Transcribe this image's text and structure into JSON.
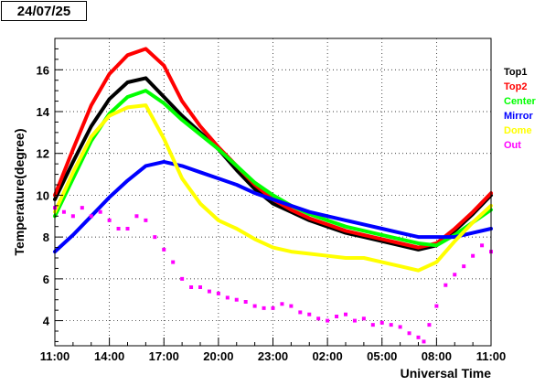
{
  "date_label": "24/07/25",
  "chart_data": {
    "type": "line",
    "ylabel": "Temperature(degree)",
    "xlabel": "Universal Time",
    "x_unit": "hours after 24/07/25 11:00 UT",
    "xlim": [
      0,
      24
    ],
    "ylim": [
      2.8,
      17.5
    ],
    "x_ticks": [
      {
        "x": 0,
        "label": "11:00"
      },
      {
        "x": 3,
        "label": "14:00"
      },
      {
        "x": 6,
        "label": "17:00"
      },
      {
        "x": 9,
        "label": "20:00"
      },
      {
        "x": 12,
        "label": "23:00"
      },
      {
        "x": 15,
        "label": "02:00"
      },
      {
        "x": 18,
        "label": "05:00"
      },
      {
        "x": 21,
        "label": "08:00"
      },
      {
        "x": 24,
        "label": "11:00"
      }
    ],
    "y_ticks": [
      4,
      6,
      8,
      10,
      12,
      14,
      16
    ],
    "grid": true,
    "legend_position": "right",
    "series": [
      {
        "name": "Top1",
        "color": "#000000",
        "style": "line",
        "points": [
          [
            0,
            9.8
          ],
          [
            1,
            11.6
          ],
          [
            2,
            13.3
          ],
          [
            3,
            14.6
          ],
          [
            4,
            15.4
          ],
          [
            5,
            15.6
          ],
          [
            6,
            14.7
          ],
          [
            7,
            13.8
          ],
          [
            8,
            13.0
          ],
          [
            9,
            12.2
          ],
          [
            10,
            11.2
          ],
          [
            11,
            10.3
          ],
          [
            12,
            9.6
          ],
          [
            13,
            9.2
          ],
          [
            14,
            8.8
          ],
          [
            15,
            8.5
          ],
          [
            16,
            8.2
          ],
          [
            17,
            8.0
          ],
          [
            18,
            7.8
          ],
          [
            19,
            7.6
          ],
          [
            20,
            7.4
          ],
          [
            21,
            7.6
          ],
          [
            22,
            8.3
          ],
          [
            23,
            9.1
          ],
          [
            24,
            10.0
          ]
        ]
      },
      {
        "name": "Top2",
        "color": "#ff0000",
        "style": "line",
        "points": [
          [
            0,
            10.0
          ],
          [
            1,
            12.2
          ],
          [
            2,
            14.3
          ],
          [
            3,
            15.8
          ],
          [
            4,
            16.7
          ],
          [
            5,
            17.0
          ],
          [
            6,
            16.2
          ],
          [
            7,
            14.5
          ],
          [
            8,
            13.3
          ],
          [
            9,
            12.3
          ],
          [
            10,
            11.4
          ],
          [
            11,
            10.5
          ],
          [
            12,
            9.8
          ],
          [
            13,
            9.3
          ],
          [
            14,
            8.9
          ],
          [
            15,
            8.6
          ],
          [
            16,
            8.3
          ],
          [
            17,
            8.1
          ],
          [
            18,
            7.9
          ],
          [
            19,
            7.7
          ],
          [
            20,
            7.5
          ],
          [
            21,
            7.7
          ],
          [
            22,
            8.4
          ],
          [
            23,
            9.2
          ],
          [
            24,
            10.1
          ]
        ]
      },
      {
        "name": "Center",
        "color": "#00ff00",
        "style": "line",
        "points": [
          [
            0,
            9.0
          ],
          [
            1,
            10.8
          ],
          [
            2,
            12.6
          ],
          [
            3,
            13.9
          ],
          [
            4,
            14.7
          ],
          [
            5,
            15.0
          ],
          [
            6,
            14.4
          ],
          [
            7,
            13.6
          ],
          [
            8,
            12.9
          ],
          [
            9,
            12.2
          ],
          [
            10,
            11.4
          ],
          [
            11,
            10.6
          ],
          [
            12,
            10.0
          ],
          [
            13,
            9.5
          ],
          [
            14,
            9.1
          ],
          [
            15,
            8.8
          ],
          [
            16,
            8.5
          ],
          [
            17,
            8.3
          ],
          [
            18,
            8.1
          ],
          [
            19,
            7.9
          ],
          [
            20,
            7.7
          ],
          [
            21,
            7.6
          ],
          [
            22,
            8.1
          ],
          [
            23,
            8.7
          ],
          [
            24,
            9.3
          ]
        ]
      },
      {
        "name": "Mirror",
        "color": "#0000ff",
        "style": "line",
        "points": [
          [
            0,
            7.3
          ],
          [
            1,
            8.1
          ],
          [
            2,
            9.0
          ],
          [
            3,
            9.9
          ],
          [
            4,
            10.7
          ],
          [
            5,
            11.4
          ],
          [
            6,
            11.6
          ],
          [
            7,
            11.4
          ],
          [
            8,
            11.1
          ],
          [
            9,
            10.8
          ],
          [
            10,
            10.5
          ],
          [
            11,
            10.1
          ],
          [
            12,
            9.8
          ],
          [
            13,
            9.5
          ],
          [
            14,
            9.2
          ],
          [
            15,
            9.0
          ],
          [
            16,
            8.8
          ],
          [
            17,
            8.6
          ],
          [
            18,
            8.4
          ],
          [
            19,
            8.2
          ],
          [
            20,
            8.0
          ],
          [
            21,
            8.0
          ],
          [
            22,
            8.0
          ],
          [
            23,
            8.2
          ],
          [
            24,
            8.4
          ]
        ]
      },
      {
        "name": "Dome",
        "color": "#ffff00",
        "style": "line",
        "points": [
          [
            0,
            9.2
          ],
          [
            1,
            11.1
          ],
          [
            2,
            12.8
          ],
          [
            3,
            13.8
          ],
          [
            4,
            14.2
          ],
          [
            5,
            14.3
          ],
          [
            6,
            12.7
          ],
          [
            7,
            10.8
          ],
          [
            8,
            9.6
          ],
          [
            9,
            8.8
          ],
          [
            10,
            8.4
          ],
          [
            11,
            7.9
          ],
          [
            12,
            7.5
          ],
          [
            13,
            7.3
          ],
          [
            14,
            7.2
          ],
          [
            15,
            7.1
          ],
          [
            16,
            7.0
          ],
          [
            17,
            7.0
          ],
          [
            18,
            6.8
          ],
          [
            19,
            6.6
          ],
          [
            20,
            6.4
          ],
          [
            21,
            6.8
          ],
          [
            22,
            7.8
          ],
          [
            23,
            8.7
          ],
          [
            24,
            9.5
          ]
        ]
      },
      {
        "name": "Out",
        "color": "#ff00ff",
        "style": "points",
        "points": [
          [
            0,
            9.4
          ],
          [
            0.5,
            9.2
          ],
          [
            1,
            9.0
          ],
          [
            1.5,
            9.4
          ],
          [
            2,
            9.0
          ],
          [
            2.5,
            9.2
          ],
          [
            3,
            8.8
          ],
          [
            3.5,
            8.4
          ],
          [
            4,
            8.4
          ],
          [
            4.5,
            9.0
          ],
          [
            5,
            8.8
          ],
          [
            5.5,
            8.0
          ],
          [
            6,
            7.4
          ],
          [
            6.5,
            6.8
          ],
          [
            7,
            6.0
          ],
          [
            7.5,
            5.6
          ],
          [
            8,
            5.6
          ],
          [
            8.5,
            5.4
          ],
          [
            9,
            5.3
          ],
          [
            9.5,
            5.1
          ],
          [
            10,
            5.0
          ],
          [
            10.5,
            4.9
          ],
          [
            11,
            4.7
          ],
          [
            11.5,
            4.6
          ],
          [
            12,
            4.6
          ],
          [
            12.5,
            4.8
          ],
          [
            13,
            4.7
          ],
          [
            13.5,
            4.4
          ],
          [
            14,
            4.3
          ],
          [
            14.5,
            4.1
          ],
          [
            15,
            4.0
          ],
          [
            15.5,
            4.2
          ],
          [
            16,
            4.3
          ],
          [
            16.5,
            4.0
          ],
          [
            17,
            4.1
          ],
          [
            17.5,
            3.8
          ],
          [
            18,
            3.9
          ],
          [
            18.5,
            3.8
          ],
          [
            19,
            3.7
          ],
          [
            19.5,
            3.4
          ],
          [
            20,
            3.2
          ],
          [
            20.3,
            3.0
          ],
          [
            20.6,
            3.8
          ],
          [
            21,
            4.7
          ],
          [
            21.5,
            5.7
          ],
          [
            22,
            6.2
          ],
          [
            22.5,
            6.6
          ],
          [
            23,
            7.1
          ],
          [
            23.5,
            7.6
          ],
          [
            24,
            7.3
          ]
        ]
      }
    ]
  }
}
